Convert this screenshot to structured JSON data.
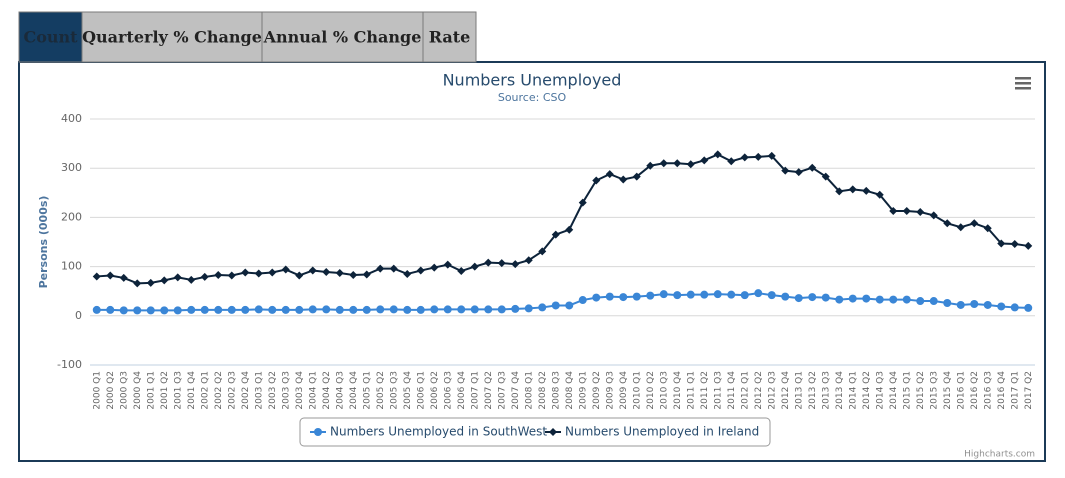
{
  "tabs": [
    "Count",
    "Quarterly % Change",
    "Annual % Change",
    "Rate"
  ],
  "active_tab": 0,
  "chart_data": {
    "type": "line",
    "title": "Numbers Unemployed",
    "subtitle": "Source: CSO",
    "y_label": "Persons (000s)",
    "credits": "Highcharts.com",
    "categories": [
      "2000 Q1",
      "2000 Q2",
      "2000 Q3",
      "2000 Q4",
      "2001 Q1",
      "2001 Q2",
      "2001 Q3",
      "2001 Q4",
      "2002 Q1",
      "2002 Q2",
      "2002 Q3",
      "2002 Q4",
      "2003 Q1",
      "2003 Q2",
      "2003 Q3",
      "2003 Q4",
      "2004 Q1",
      "2004 Q2",
      "2004 Q3",
      "2004 Q4",
      "2005 Q1",
      "2005 Q2",
      "2005 Q3",
      "2005 Q4",
      "2006 Q1",
      "2006 Q2",
      "2006 Q3",
      "2006 Q4",
      "2007 Q1",
      "2007 Q2",
      "2007 Q3",
      "2007 Q4",
      "2008 Q1",
      "2008 Q2",
      "2008 Q3",
      "2008 Q4",
      "2009 Q1",
      "2009 Q2",
      "2009 Q3",
      "2009 Q4",
      "2010 Q1",
      "2010 Q2",
      "2010 Q3",
      "2010 Q4",
      "2011 Q1",
      "2011 Q2",
      "2011 Q3",
      "2011 Q4",
      "2012 Q1",
      "2012 Q2",
      "2012 Q3",
      "2012 Q4",
      "2013 Q1",
      "2013 Q2",
      "2013 Q3",
      "2013 Q4",
      "2014 Q1",
      "2014 Q2",
      "2014 Q3",
      "2014 Q4",
      "2015 Q1",
      "2015 Q2",
      "2015 Q3",
      "2015 Q4",
      "2016 Q1",
      "2016 Q2",
      "2016 Q3",
      "2016 Q4",
      "2017 Q1",
      "2017 Q2"
    ],
    "series": [
      {
        "name": "Numbers Unemployed in SouthWest",
        "color": "#3a86d6",
        "marker": "circle",
        "values": [
          12,
          12,
          11,
          11,
          11,
          11,
          11,
          12,
          12,
          12,
          12,
          12,
          13,
          12,
          12,
          12,
          13,
          13,
          12,
          12,
          12,
          13,
          13,
          12,
          12,
          13,
          13,
          13,
          13,
          13,
          13,
          14,
          15,
          17,
          21,
          21,
          32,
          37,
          39,
          38,
          39,
          41,
          44,
          42,
          43,
          43,
          44,
          43,
          42,
          46,
          42,
          39,
          36,
          38,
          37,
          33,
          35,
          35,
          33,
          33,
          33,
          30,
          30,
          26,
          22,
          24,
          22,
          19,
          17,
          16
        ]
      },
      {
        "name": "Numbers Unemployed in Ireland",
        "color": "#0d233a",
        "marker": "diamond",
        "values": [
          80,
          82,
          77,
          66,
          67,
          72,
          78,
          73,
          79,
          83,
          82,
          88,
          86,
          88,
          94,
          82,
          92,
          89,
          87,
          83,
          84,
          96,
          96,
          85,
          92,
          98,
          104,
          91,
          100,
          108,
          107,
          105,
          113,
          131,
          165,
          175,
          230,
          275,
          288,
          277,
          283,
          305,
          310,
          310,
          308,
          316,
          328,
          314,
          322,
          323,
          325,
          295,
          292,
          301,
          283,
          253,
          257,
          254,
          246,
          213,
          213,
          211,
          204,
          188,
          180,
          188,
          178,
          147,
          146,
          142
        ]
      }
    ],
    "ylim": [
      -100,
      400
    ],
    "yticks": [
      -100,
      0,
      100,
      200,
      300,
      400
    ],
    "grid": true
  }
}
